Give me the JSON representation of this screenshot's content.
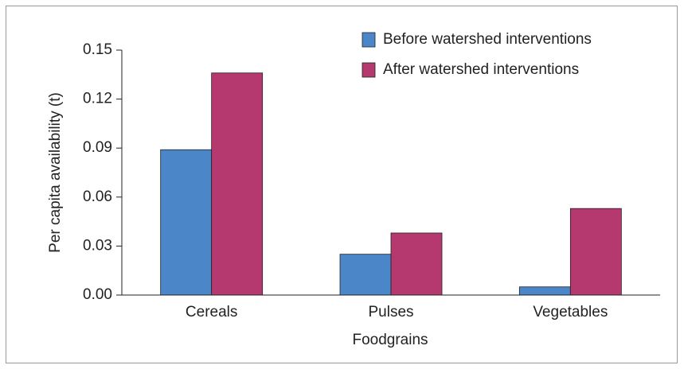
{
  "chart_data": {
    "type": "bar",
    "y_label": "Per capita availability (t)",
    "x_label": "Foodgrains",
    "categories": [
      "Cereals",
      "Pulses",
      "Vegetables"
    ],
    "series": [
      {
        "name": "Before watershed interventions",
        "color": "#4a86c8",
        "values": [
          0.089,
          0.025,
          0.005
        ]
      },
      {
        "name": "After watershed interventions",
        "color": "#b5386f",
        "values": [
          0.136,
          0.038,
          0.053
        ]
      }
    ],
    "ylim": [
      0,
      0.15
    ],
    "yticks": [
      {
        "value": 0,
        "label": "0.00"
      },
      0.03,
      0.06,
      0.09,
      0.12,
      0.15
    ],
    "legend": "top-right"
  }
}
